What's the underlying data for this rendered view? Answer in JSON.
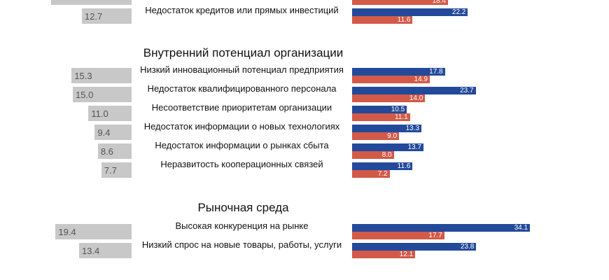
{
  "chart_data": {
    "type": "bar",
    "title": "",
    "series_colors": {
      "gray": "#c8c8c8",
      "blue": "#234a9a",
      "red": "#d35a48"
    },
    "sections": [
      {
        "title": "",
        "rows": [
          {
            "label": "",
            "gray": 20.6,
            "gray_label_visible": false,
            "blue": null,
            "red": 18.4
          },
          {
            "label": "Недостаток кредитов или прямых инвестиций",
            "gray": 12.7,
            "blue": 22.2,
            "red": 11.6
          }
        ]
      },
      {
        "title": "Внутренний потенциал организации",
        "rows": [
          {
            "label": "Низкий инновационный потенциал предприятия",
            "gray": 15.3,
            "blue": 17.8,
            "red": 14.9
          },
          {
            "label": "Недостаток квалифицированного персонала",
            "gray": 15.0,
            "blue": 23.7,
            "red": 14.0
          },
          {
            "label": "Несоответствие приоритетам организации",
            "gray": 11.0,
            "blue": 10.5,
            "red": 11.1
          },
          {
            "label": "Недостаток информации о новых технологиях",
            "gray": 9.4,
            "blue": 13.3,
            "red": 9.0
          },
          {
            "label": "Недостаток информации о рынках сбыта",
            "gray": 8.6,
            "blue": 13.7,
            "red": 8.0
          },
          {
            "label": "Неразвитость кооперационных связей",
            "gray": 7.7,
            "blue": 11.6,
            "red": 7.2
          }
        ]
      },
      {
        "title": "Рыночная среда",
        "rows": [
          {
            "label": "Высокая конкуренция на рынке",
            "gray": 19.4,
            "blue": 34.1,
            "red": 17.7
          },
          {
            "label": "Низкий спрос на новые товары, работы, услуги",
            "gray": 13.4,
            "blue": 23.8,
            "red": 12.1
          }
        ]
      }
    ]
  }
}
